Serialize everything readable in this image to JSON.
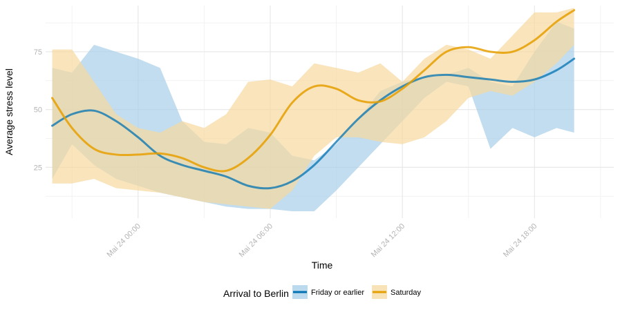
{
  "chart_data": {
    "type": "line",
    "xlabel": "Time",
    "ylabel": "Average stress level",
    "x_ticks": [
      {
        "hour": 0,
        "label": "Mai 24 00:00"
      },
      {
        "hour": 6,
        "label": "Mai 24 06:00"
      },
      {
        "hour": 12,
        "label": "Mai 24 12:00"
      },
      {
        "hour": 18,
        "label": "Mai 24 18:00"
      }
    ],
    "y_ticks": [
      25,
      50,
      75
    ],
    "xlim_hours": [
      -4.2,
      21.6
    ],
    "ylim": [
      3,
      95
    ],
    "grid": true,
    "legend": {
      "title": "Arrival to Berlin",
      "position": "bottom"
    },
    "series": [
      {
        "name": "Friday or earlier",
        "color": "#0072B2",
        "band_color": "#A6CEE8",
        "x": [
          -3.9,
          -3.0,
          -2.0,
          -1.0,
          0.0,
          1.0,
          2.0,
          3.0,
          4.0,
          5.0,
          6.0,
          7.0,
          8.0,
          9.0,
          10.0,
          11.0,
          12.0,
          13.0,
          14.0,
          15.0,
          16.0,
          17.0,
          18.0,
          19.0,
          19.8
        ],
        "values": [
          43,
          48,
          49.5,
          45,
          38,
          30,
          26,
          23.5,
          21,
          17,
          16,
          19,
          26,
          36,
          46,
          54,
          60,
          64,
          65,
          64,
          63,
          62,
          63,
          67,
          72
        ],
        "lower": [
          20,
          35,
          26,
          20,
          17,
          14,
          12,
          10,
          8,
          7,
          7,
          6,
          6,
          15,
          25,
          35,
          45,
          55,
          62,
          60,
          33,
          42,
          38,
          42,
          40
        ],
        "upper": [
          68,
          66,
          78,
          75,
          72,
          68,
          45,
          36,
          35,
          42,
          40,
          30,
          28,
          35,
          46,
          58,
          62,
          64,
          65,
          68,
          62,
          60,
          75,
          88,
          85
        ]
      },
      {
        "name": "Saturday",
        "color": "#E69F00",
        "band_color": "#F6D9A0",
        "x": [
          -3.9,
          -3.0,
          -2.0,
          -1.0,
          0.0,
          1.0,
          2.0,
          3.0,
          4.0,
          5.0,
          6.0,
          7.0,
          8.0,
          9.0,
          10.0,
          11.0,
          12.0,
          13.0,
          14.0,
          15.0,
          16.0,
          17.0,
          18.0,
          19.0,
          19.8
        ],
        "values": [
          55,
          42,
          33,
          30.5,
          30.5,
          31,
          29,
          25,
          23.5,
          29,
          39,
          53,
          60,
          59,
          54,
          53.5,
          59,
          67,
          75,
          77,
          75,
          75,
          80,
          88,
          93
        ],
        "lower": [
          18,
          18,
          20,
          16,
          15,
          14,
          12,
          10,
          9,
          8,
          7,
          15,
          30,
          38,
          38,
          36,
          35,
          38,
          45,
          55,
          58,
          56,
          62,
          70,
          78
        ],
        "upper": [
          76,
          76,
          62,
          48,
          42,
          40,
          45,
          42,
          48,
          62,
          63,
          60,
          70,
          68,
          66,
          70,
          62,
          72,
          78,
          76,
          72,
          82,
          92,
          92,
          94
        ]
      }
    ]
  }
}
